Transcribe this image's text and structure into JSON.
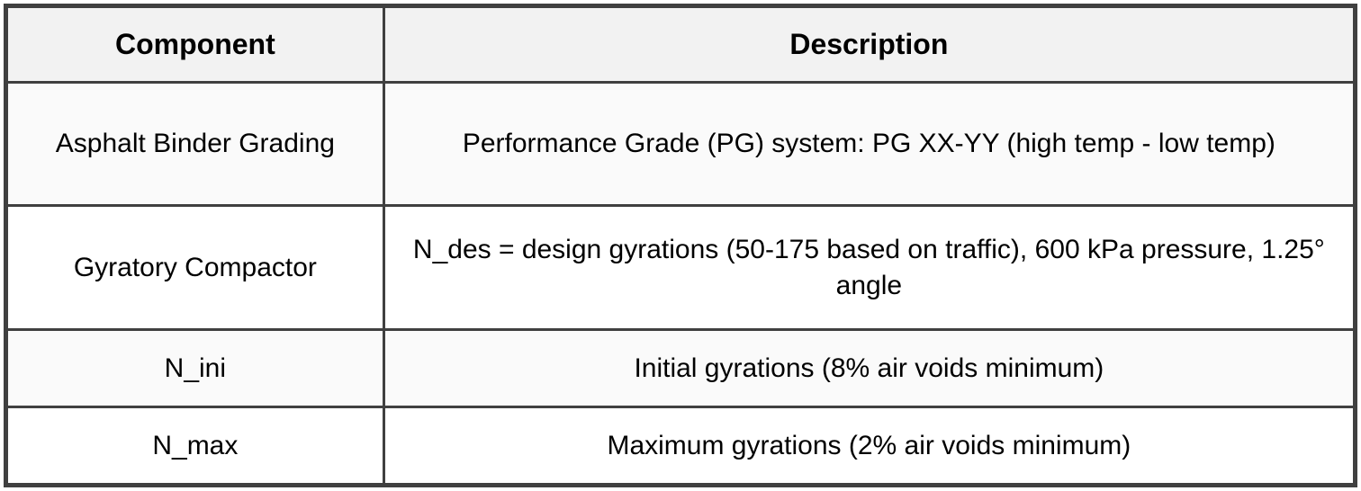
{
  "table": {
    "headers": {
      "component": "Component",
      "description": "Description"
    },
    "rows": [
      {
        "component": "Asphalt Binder Grading",
        "description": "Performance Grade (PG) system: PG XX-YY (high temp - low temp)"
      },
      {
        "component": "Gyratory Compactor",
        "description": "N_des = design gyrations (50-175 based on traffic), 600 kPa pressure, 1.25° angle"
      },
      {
        "component": "N_ini",
        "description": "Initial gyrations (8% air voids minimum)"
      },
      {
        "component": "N_max",
        "description": "Maximum gyrations (2% air voids minimum)"
      }
    ],
    "colors": {
      "border": "#404040",
      "header_bg": "#f2f2f2",
      "row_odd_bg": "#fafafa",
      "row_even_bg": "#ffffff",
      "text": "#000000"
    }
  }
}
